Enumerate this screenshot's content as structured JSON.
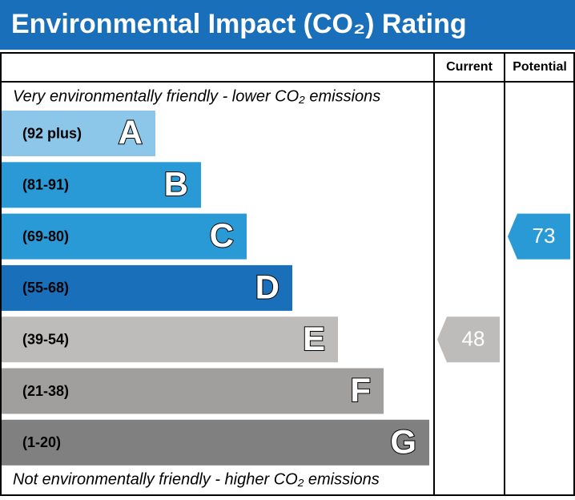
{
  "chart_data": {
    "type": "rating",
    "title": "Environmental Impact (CO₂) Rating",
    "columns": [
      "Current",
      "Potential"
    ],
    "top_note": "Very environmentally friendly - lower CO₂ emissions",
    "bottom_note": "Not environmentally friendly - higher CO₂ emissions",
    "bands": [
      {
        "label": "(92 plus)",
        "letter": "A",
        "color": "#8cc6e8"
      },
      {
        "label": "(81-91)",
        "letter": "B",
        "color": "#2a9ad6"
      },
      {
        "label": "(69-80)",
        "letter": "C",
        "color": "#2a9ad6"
      },
      {
        "label": "(55-68)",
        "letter": "D",
        "color": "#1a6fba"
      },
      {
        "label": "(39-54)",
        "letter": "E",
        "color": "#bdbcba"
      },
      {
        "label": "(21-38)",
        "letter": "F",
        "color": "#a09f9e"
      },
      {
        "label": "(1-20)",
        "letter": "G",
        "color": "#818080"
      }
    ],
    "current": 48,
    "potential": 73
  }
}
